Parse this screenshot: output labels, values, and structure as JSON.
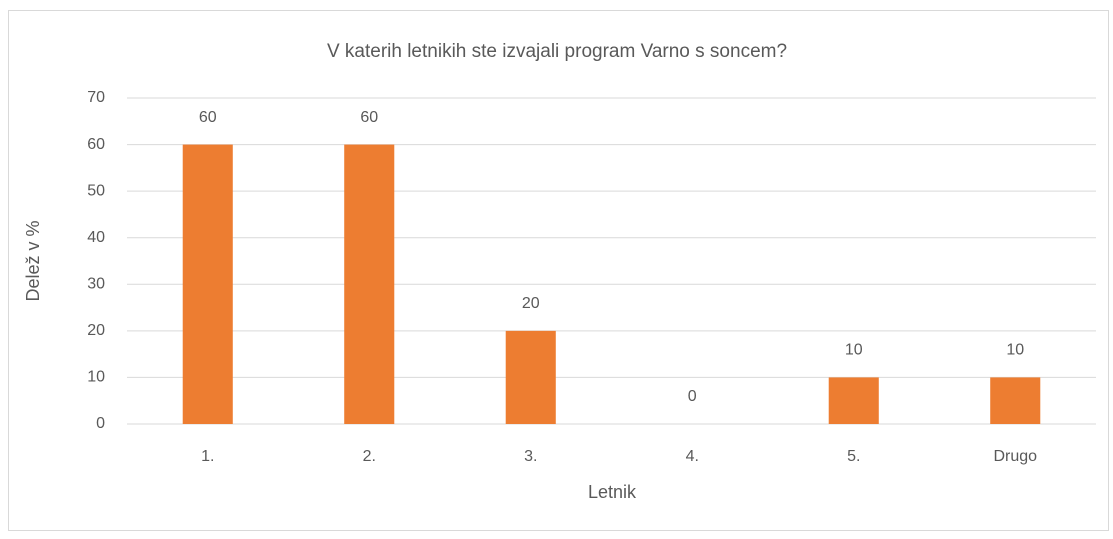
{
  "chart_data": {
    "type": "bar",
    "title": "V katerih letnikih ste izvajali program Varno s soncem?",
    "x_label": "Letnik",
    "y_label": "Delež v %",
    "categories": [
      "1.",
      "2.",
      "3.",
      "4.",
      "5.",
      "Drugo"
    ],
    "values": [
      60,
      60,
      20,
      0,
      10,
      10
    ],
    "color": "#ed7d31",
    "ylim": [
      0,
      70
    ],
    "yticks": [
      0,
      10,
      20,
      30,
      40,
      50,
      60,
      70
    ],
    "grid": true
  }
}
